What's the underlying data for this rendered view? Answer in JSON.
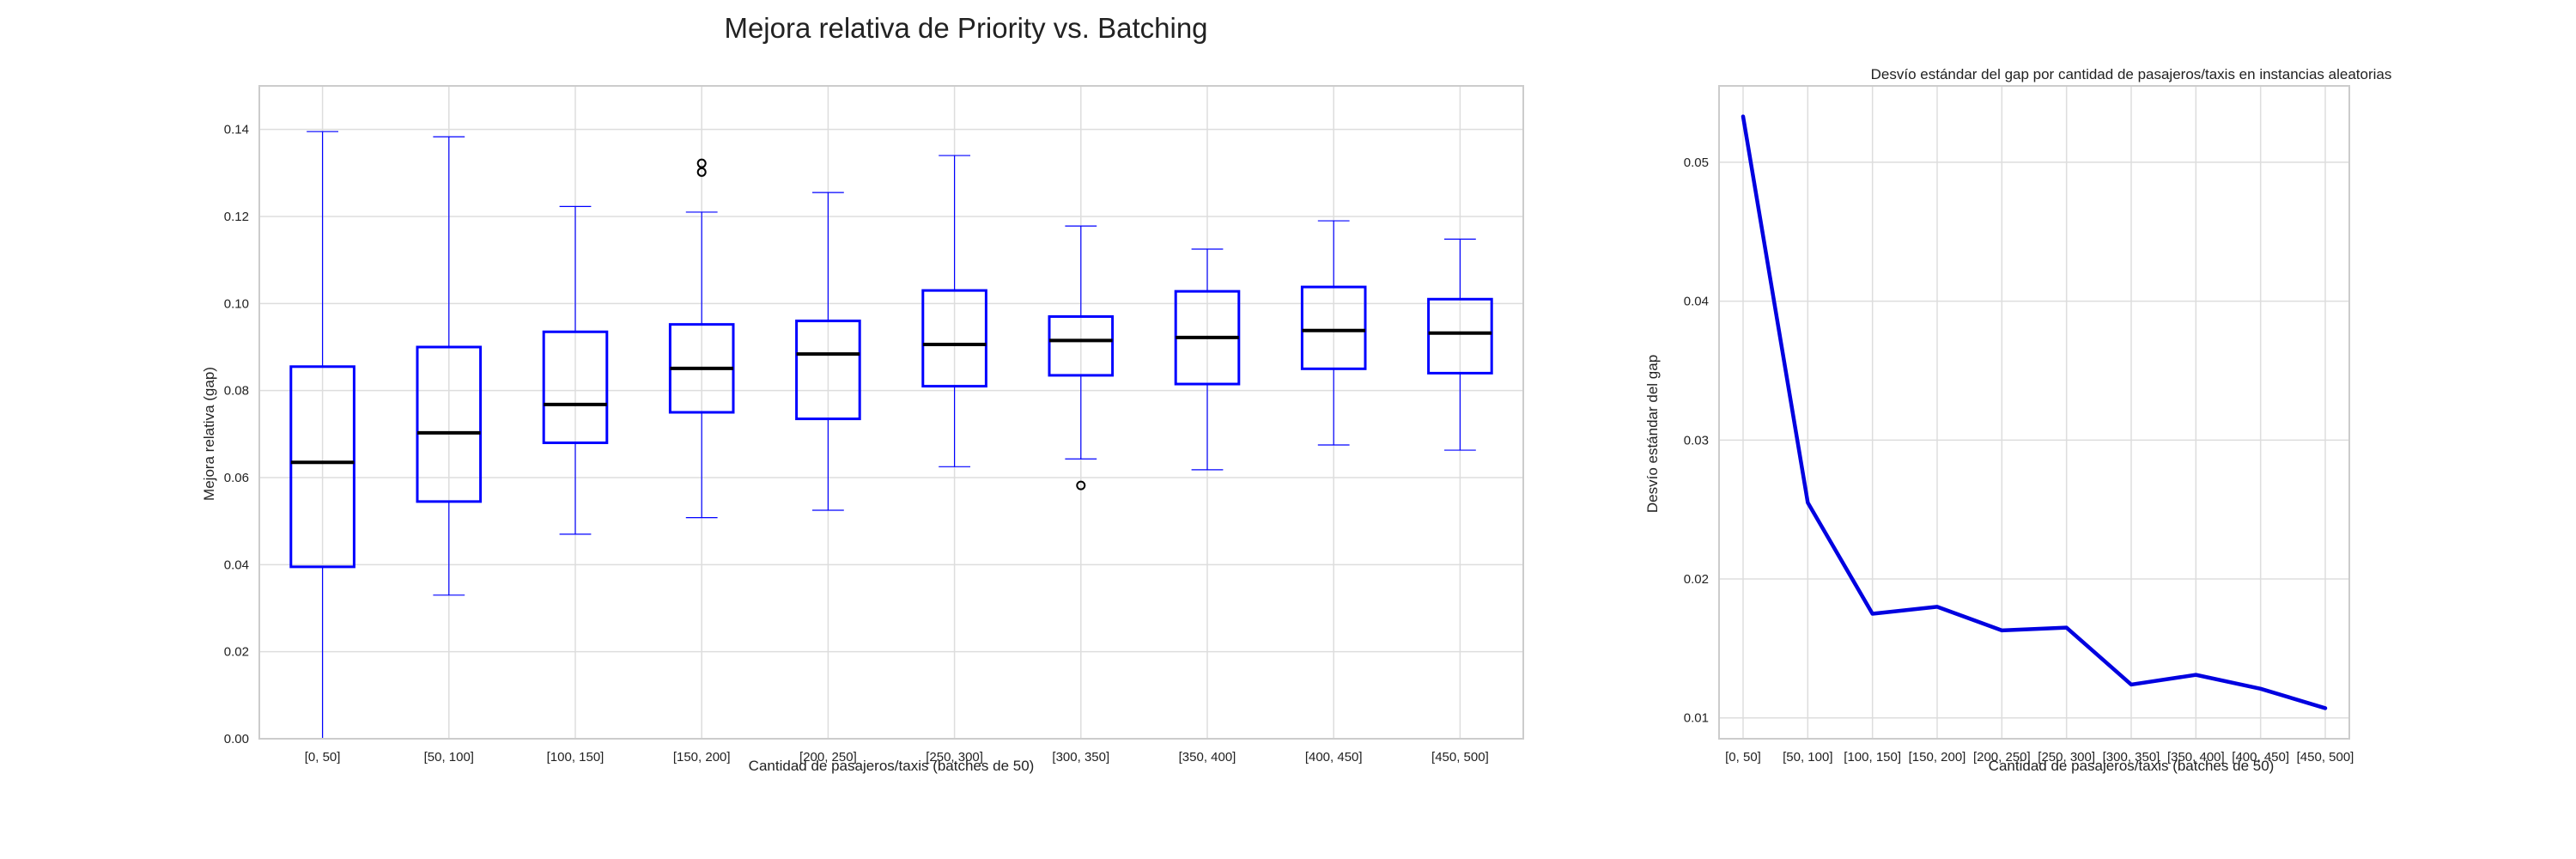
{
  "figure": {
    "title": "Mejora relativa de Priority vs. Batching"
  },
  "chart_data": [
    {
      "type": "box",
      "title": "",
      "xlabel": "Cantidad de pasajeros/taxis (batches de 50)",
      "ylabel": "Mejora relativa (gap)",
      "ylim": [
        0,
        0.15
      ],
      "yticks": [
        0.0,
        0.02,
        0.04,
        0.06,
        0.08,
        0.1,
        0.12,
        0.14
      ],
      "grid": true,
      "box_color": "#0000ff",
      "median_color": "#000000",
      "categories": [
        "[0, 50]",
        "[50, 100]",
        "[100, 150]",
        "[150, 200]",
        "[200, 250]",
        "[250, 300]",
        "[300, 350]",
        "[350, 400]",
        "[400, 450]",
        "[450, 500]"
      ],
      "boxes": [
        {
          "whisker_low": 0.0,
          "q1": 0.0395,
          "median": 0.0635,
          "q3": 0.0855,
          "whisker_high": 0.1395,
          "outliers": []
        },
        {
          "whisker_low": 0.033,
          "q1": 0.0545,
          "median": 0.0703,
          "q3": 0.09,
          "whisker_high": 0.1383,
          "outliers": []
        },
        {
          "whisker_low": 0.047,
          "q1": 0.068,
          "median": 0.0768,
          "q3": 0.0935,
          "whisker_high": 0.1223,
          "outliers": []
        },
        {
          "whisker_low": 0.0508,
          "q1": 0.075,
          "median": 0.0851,
          "q3": 0.0952,
          "whisker_high": 0.121,
          "outliers": [
            0.1302,
            0.1322
          ]
        },
        {
          "whisker_low": 0.0525,
          "q1": 0.0735,
          "median": 0.0884,
          "q3": 0.096,
          "whisker_high": 0.1255,
          "outliers": []
        },
        {
          "whisker_low": 0.0625,
          "q1": 0.081,
          "median": 0.0906,
          "q3": 0.103,
          "whisker_high": 0.134,
          "outliers": []
        },
        {
          "whisker_low": 0.0643,
          "q1": 0.0835,
          "median": 0.0915,
          "q3": 0.097,
          "whisker_high": 0.1178,
          "outliers": [
            0.0582
          ]
        },
        {
          "whisker_low": 0.0618,
          "q1": 0.0815,
          "median": 0.0922,
          "q3": 0.1028,
          "whisker_high": 0.1125,
          "outliers": []
        },
        {
          "whisker_low": 0.0675,
          "q1": 0.085,
          "median": 0.0938,
          "q3": 0.1038,
          "whisker_high": 0.119,
          "outliers": []
        },
        {
          "whisker_low": 0.0663,
          "q1": 0.084,
          "median": 0.0932,
          "q3": 0.101,
          "whisker_high": 0.1148,
          "outliers": []
        }
      ]
    },
    {
      "type": "line",
      "title": "Desvío estándar del gap por cantidad de pasajeros/taxis en instancias aleatorias",
      "xlabel": "Cantidad de pasajeros/taxis (batches de 50)",
      "ylabel": "Desvío estándar del gap",
      "ylim": [
        0.0085,
        0.0555
      ],
      "yticks": [
        0.01,
        0.02,
        0.03,
        0.04,
        0.05
      ],
      "grid": true,
      "line_color": "#0000e0",
      "categories": [
        "[0, 50]",
        "[50, 100]",
        "[100, 150]",
        "[150, 200]",
        "[200, 250]",
        "[250, 300]",
        "[300, 350]",
        "[350, 400]",
        "[400, 450]",
        "[450, 500]"
      ],
      "values": [
        0.0533,
        0.0255,
        0.0175,
        0.018,
        0.0163,
        0.0165,
        0.0124,
        0.0131,
        0.0121,
        0.0107
      ]
    }
  ]
}
